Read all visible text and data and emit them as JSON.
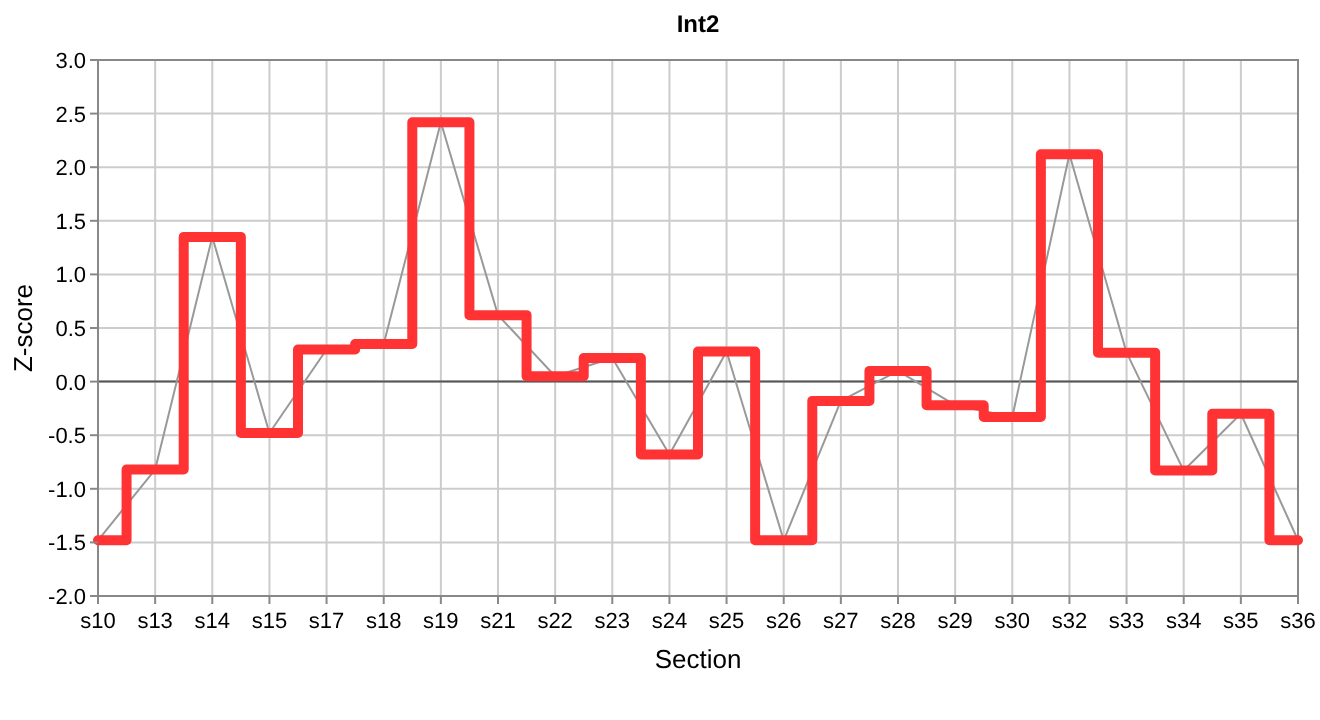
{
  "chart_data": {
    "type": "line",
    "title": "Int2",
    "xlabel": "Section",
    "ylabel": "Z-score",
    "categories": [
      "s10",
      "s13",
      "s14",
      "s15",
      "s17",
      "s18",
      "s19",
      "s21",
      "s22",
      "s23",
      "s24",
      "s25",
      "s26",
      "s27",
      "s28",
      "s29",
      "s30",
      "s32",
      "s33",
      "s34",
      "s35",
      "s36"
    ],
    "series": [
      {
        "color": "#999999",
        "values": [
          -1.48,
          -0.82,
          1.35,
          -0.48,
          0.3,
          0.35,
          2.42,
          0.62,
          0.05,
          0.22,
          -0.68,
          0.28,
          -1.48,
          -0.18,
          0.1,
          -0.22,
          -0.33,
          2.12,
          0.27,
          -0.83,
          -0.3,
          -1.48
        ]
      },
      {
        "type": "step",
        "color": "#ff3333",
        "values": [
          -1.48,
          -0.82,
          1.35,
          -0.48,
          0.3,
          0.35,
          2.42,
          0.62,
          0.05,
          0.22,
          -0.68,
          0.28,
          -1.48,
          -0.18,
          0.1,
          -0.22,
          -0.33,
          2.12,
          0.27,
          -0.83,
          -0.3,
          -1.48
        ]
      }
    ],
    "ylim": [
      -2,
      3
    ],
    "yticks": [
      {
        "value": -2,
        "label": "-2.0"
      },
      {
        "value": -1.5,
        "label": "-1.5"
      },
      {
        "value": -1,
        "label": "-1.0"
      },
      {
        "value": -0.5,
        "label": "-0.5"
      },
      {
        "value": 0,
        "label": "0.0"
      },
      {
        "value": 0.5,
        "label": "0.5"
      },
      {
        "value": 1,
        "label": "1.0"
      },
      {
        "value": 1.5,
        "label": "1.5"
      },
      {
        "value": 2,
        "label": "2.0"
      },
      {
        "value": 2.5,
        "label": "2.5"
      },
      {
        "value": 3,
        "label": "3.0"
      }
    ],
    "grid": true,
    "marker": "none",
    "ref_lines": [
      {
        "axis": "y",
        "value": 0,
        "color": "#555555"
      }
    ]
  }
}
